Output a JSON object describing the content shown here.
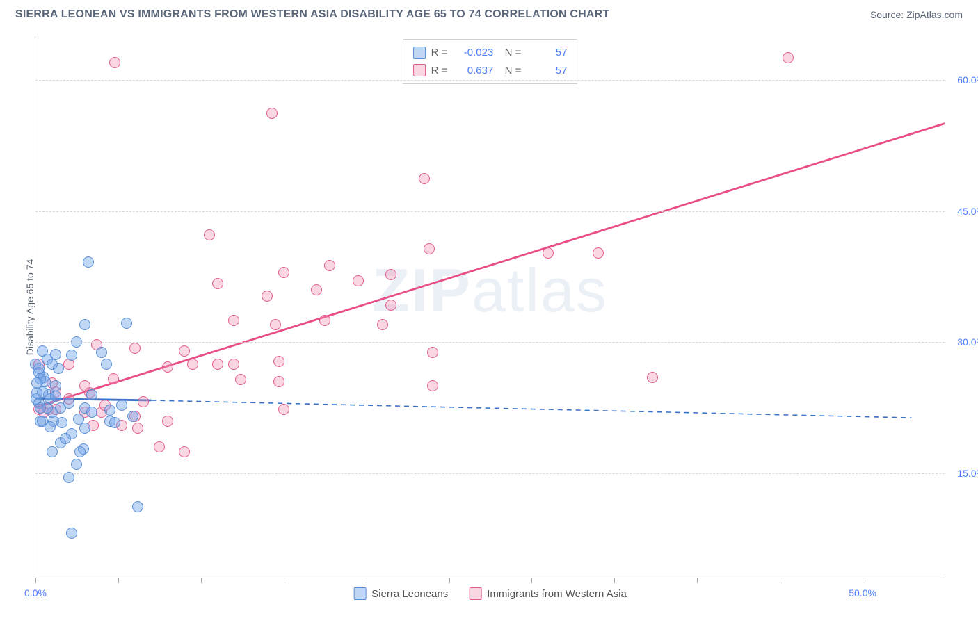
{
  "header": {
    "title": "SIERRA LEONEAN VS IMMIGRANTS FROM WESTERN ASIA DISABILITY AGE 65 TO 74 CORRELATION CHART",
    "source": "Source: ZipAtlas.com"
  },
  "chart": {
    "type": "scatter",
    "y_axis_title": "Disability Age 65 to 74",
    "watermark": {
      "bold": "ZIP",
      "light": "atlas"
    },
    "background_color": "#ffffff",
    "grid_color": "#d8d8d8",
    "axis_color": "#a8a8a8",
    "xlim": [
      0,
      55
    ],
    "ylim": [
      3,
      65
    ],
    "x_ticks": [
      0,
      5,
      10,
      15,
      20,
      25,
      30,
      35,
      40,
      45,
      50
    ],
    "x_tick_labels": {
      "0": "0.0%",
      "50": "50.0%"
    },
    "y_gridlines": [
      15,
      30,
      45,
      60
    ],
    "y_tick_labels": {
      "15": "15.0%",
      "30": "30.0%",
      "45": "45.0%",
      "60": "60.0%"
    },
    "series_a": {
      "name": "Sierra Leoneans",
      "marker_fill": "rgba(114, 164, 232, 0.45)",
      "marker_stroke": "#5b8fd6",
      "line_color": "#3b73c9",
      "r": "-0.023",
      "n": "57",
      "solid_line": {
        "x1": 0,
        "y1": 23.5,
        "x2": 7,
        "y2": 23.3
      },
      "dashed_line": {
        "x1": 7,
        "y1": 23.3,
        "x2": 53,
        "y2": 21.3
      },
      "points": [
        [
          3.2,
          39.2
        ],
        [
          0.2,
          23.0
        ],
        [
          0.4,
          29.0
        ],
        [
          0.5,
          26.0
        ],
        [
          0.7,
          28.0
        ],
        [
          0.8,
          24.0
        ],
        [
          0.9,
          23.5
        ],
        [
          1.0,
          27.5
        ],
        [
          0.4,
          24.3
        ],
        [
          1.0,
          22.0
        ],
        [
          1.1,
          21.0
        ],
        [
          1.2,
          25.0
        ],
        [
          1.5,
          22.5
        ],
        [
          1.6,
          20.8
        ],
        [
          0.3,
          21.0
        ],
        [
          1.0,
          17.5
        ],
        [
          2.0,
          23.0
        ],
        [
          2.2,
          19.5
        ],
        [
          2.2,
          28.5
        ],
        [
          2.5,
          30.0
        ],
        [
          2.6,
          21.2
        ],
        [
          2.9,
          17.8
        ],
        [
          3.0,
          22.5
        ],
        [
          2.5,
          16.0
        ],
        [
          3.0,
          32.0
        ],
        [
          3.4,
          24.0
        ],
        [
          3.4,
          22.0
        ],
        [
          4.0,
          28.8
        ],
        [
          4.5,
          21.0
        ],
        [
          4.5,
          22.2
        ],
        [
          5.2,
          22.8
        ],
        [
          4.8,
          20.8
        ],
        [
          5.5,
          32.2
        ],
        [
          5.9,
          21.5
        ],
        [
          1.5,
          18.5
        ],
        [
          6.2,
          11.2
        ],
        [
          2.0,
          14.5
        ],
        [
          2.2,
          8.2
        ],
        [
          2.7,
          17.5
        ],
        [
          4.3,
          27.5
        ],
        [
          3.0,
          20.2
        ],
        [
          0.6,
          25.5
        ],
        [
          0.7,
          22.5
        ],
        [
          0.2,
          26.5
        ],
        [
          0.0,
          27.5
        ],
        [
          0.05,
          23.5
        ],
        [
          0.4,
          21.0
        ],
        [
          0.3,
          25.8
        ],
        [
          1.2,
          28.6
        ],
        [
          1.2,
          23.8
        ],
        [
          0.3,
          22.5
        ],
        [
          1.4,
          27.0
        ],
        [
          0.9,
          20.3
        ],
        [
          0.2,
          27.0
        ],
        [
          0.1,
          25.3
        ],
        [
          0.1,
          24.2
        ],
        [
          1.8,
          19.0
        ]
      ]
    },
    "series_b": {
      "name": "Immigrants from Western Asia",
      "marker_fill": "rgba(241, 144, 178, 0.38)",
      "marker_stroke": "#e05d8f",
      "line_color": "#e84d86",
      "r": "0.637",
      "n": "57",
      "solid_line": {
        "x1": 0,
        "y1": 22.5,
        "x2": 55,
        "y2": 55.0
      },
      "points": [
        [
          4.8,
          62.0
        ],
        [
          14.3,
          56.2
        ],
        [
          23.5,
          48.7
        ],
        [
          9.0,
          17.5
        ],
        [
          45.5,
          62.5
        ],
        [
          10.5,
          42.3
        ],
        [
          23.8,
          40.7
        ],
        [
          31.0,
          40.2
        ],
        [
          15.0,
          38.0
        ],
        [
          11.0,
          36.7
        ],
        [
          17.8,
          38.8
        ],
        [
          14.0,
          35.3
        ],
        [
          17.0,
          36.0
        ],
        [
          21.5,
          37.7
        ],
        [
          21.5,
          34.2
        ],
        [
          14.5,
          32.0
        ],
        [
          12.0,
          32.5
        ],
        [
          9.0,
          29.0
        ],
        [
          9.5,
          27.5
        ],
        [
          8.0,
          27.2
        ],
        [
          8.0,
          21.0
        ],
        [
          12.0,
          27.5
        ],
        [
          12.4,
          25.7
        ],
        [
          14.7,
          27.8
        ],
        [
          14.7,
          25.5
        ],
        [
          15.0,
          22.3
        ],
        [
          17.5,
          32.5
        ],
        [
          21.0,
          32.0
        ],
        [
          19.5,
          37.0
        ],
        [
          24.0,
          28.8
        ],
        [
          6.0,
          29.3
        ],
        [
          6.0,
          21.5
        ],
        [
          6.5,
          23.2
        ],
        [
          6.2,
          20.2
        ],
        [
          7.5,
          18.0
        ],
        [
          3.3,
          24.2
        ],
        [
          4.7,
          25.8
        ],
        [
          4.0,
          22.0
        ],
        [
          5.2,
          20.5
        ],
        [
          3.0,
          22.0
        ],
        [
          2.0,
          23.5
        ],
        [
          2.0,
          27.5
        ],
        [
          3.0,
          25.0
        ],
        [
          3.7,
          29.7
        ],
        [
          1.2,
          22.3
        ],
        [
          1.2,
          24.3
        ],
        [
          1.0,
          25.3
        ],
        [
          0.2,
          27.5
        ],
        [
          0.8,
          22.3
        ],
        [
          0.2,
          22.3
        ],
        [
          24.0,
          25.0
        ],
        [
          37.3,
          26.0
        ],
        [
          34.0,
          40.2
        ],
        [
          3.5,
          20.5
        ],
        [
          4.2,
          22.8
        ],
        [
          0.5,
          22.0
        ],
        [
          11.0,
          27.5
        ]
      ]
    }
  }
}
